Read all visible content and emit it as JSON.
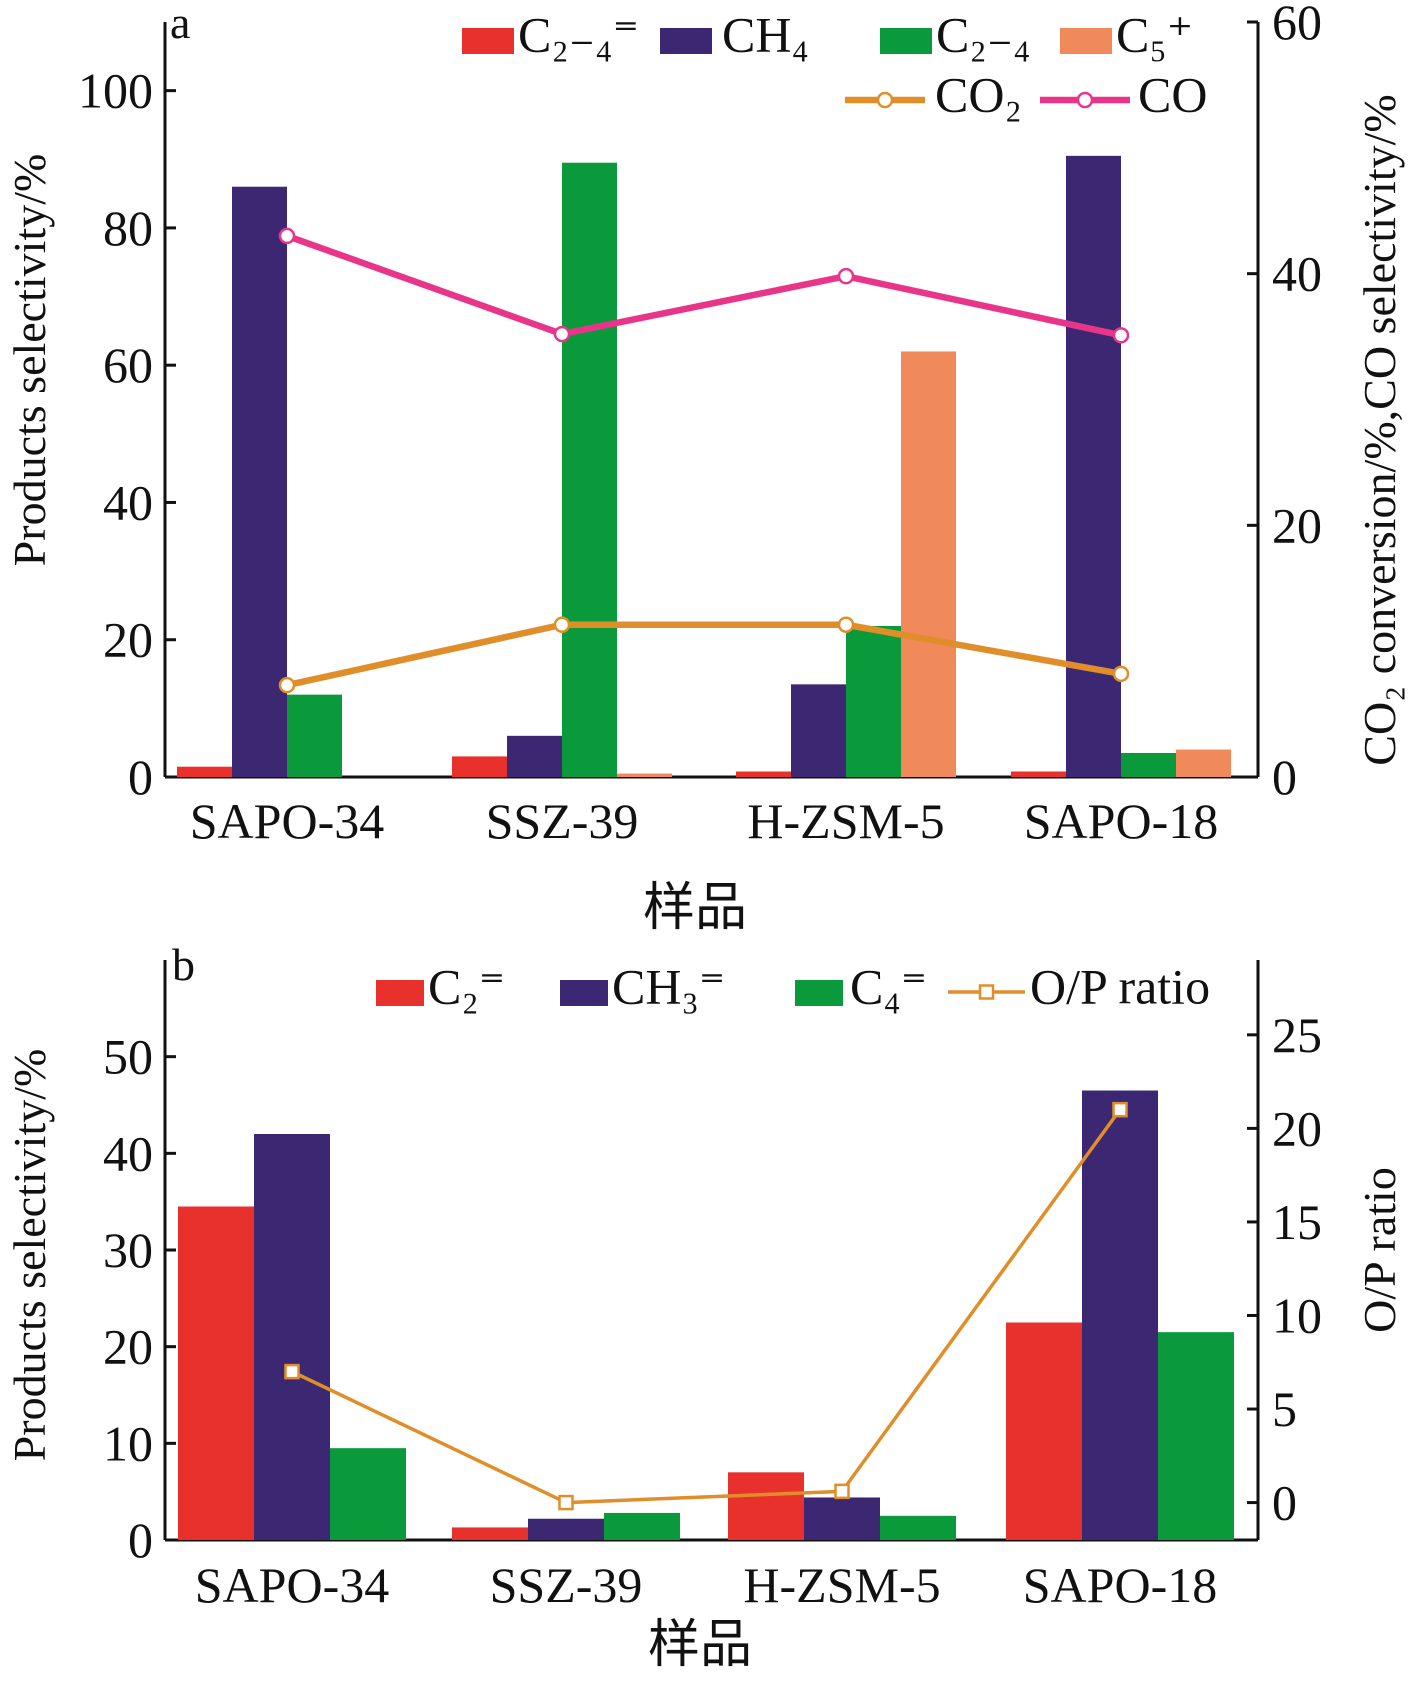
{
  "chart_data": [
    {
      "panel": "a",
      "type": "bar",
      "categories": [
        "SAPO-34",
        "SSZ-39",
        "H-ZSM-5",
        "SAPO-18"
      ],
      "xlabel": "样品",
      "ylabel": "Products selectivity/%",
      "ylabel_right": "CO₂ conversion/%,CO selectivity/%",
      "ylim": [
        0,
        110
      ],
      "yticks": [
        0,
        20,
        40,
        60,
        80,
        100
      ],
      "ylim_right": [
        0,
        60
      ],
      "yticks_right": [
        0,
        20,
        40,
        60
      ],
      "series": [
        {
          "name": "C₂₋₄⁼",
          "type": "bar",
          "color": "#e8302c",
          "values": [
            1.5,
            3,
            0.8,
            0.8
          ]
        },
        {
          "name": "CH₄",
          "type": "bar",
          "color": "#3c2872",
          "values": [
            86,
            6,
            13.5,
            90.5
          ]
        },
        {
          "name": "C₂₋₄",
          "type": "bar",
          "color": "#0a9a3c",
          "values": [
            12,
            89.5,
            22,
            3.5
          ]
        },
        {
          "name": "C₅⁺",
          "type": "bar",
          "color": "#f08a5a",
          "values": [
            0,
            0.5,
            62,
            4
          ]
        },
        {
          "name": "CO₂",
          "type": "line",
          "axis": "right",
          "color": "#e08e2a",
          "marker": "circle",
          "values": [
            7.3,
            12.1,
            12.1,
            8.2
          ]
        },
        {
          "name": "CO",
          "type": "line",
          "axis": "right",
          "color": "#e8358a",
          "marker": "circle",
          "values": [
            43,
            35.2,
            39.8,
            35.1
          ]
        }
      ]
    },
    {
      "panel": "b",
      "type": "bar",
      "categories": [
        "SAPO-34",
        "SSZ-39",
        "H-ZSM-5",
        "SAPO-18"
      ],
      "xlabel": "样品",
      "ylabel": "Products selectivity/%",
      "ylabel_right": "O/P ratio",
      "ylim": [
        0,
        60
      ],
      "yticks": [
        0,
        10,
        20,
        30,
        40,
        50
      ],
      "ylim_right": [
        -2,
        29
      ],
      "yticks_right": [
        0,
        5,
        10,
        15,
        20,
        25
      ],
      "series": [
        {
          "name": "C₂⁼",
          "type": "bar",
          "color": "#e8302c",
          "values": [
            34.5,
            1.3,
            7,
            22.5
          ]
        },
        {
          "name": "CH₃⁼",
          "type": "bar",
          "color": "#3c2872",
          "values": [
            42,
            2.2,
            4.4,
            46.5
          ]
        },
        {
          "name": "C₄⁼",
          "type": "bar",
          "color": "#0a9a3c",
          "values": [
            9.5,
            2.8,
            2.5,
            21.5
          ]
        },
        {
          "name": "O/P ratio",
          "type": "line",
          "axis": "right",
          "color": "#e08e2a",
          "marker": "square",
          "values": [
            7,
            0,
            0.6,
            21
          ]
        }
      ]
    }
  ]
}
